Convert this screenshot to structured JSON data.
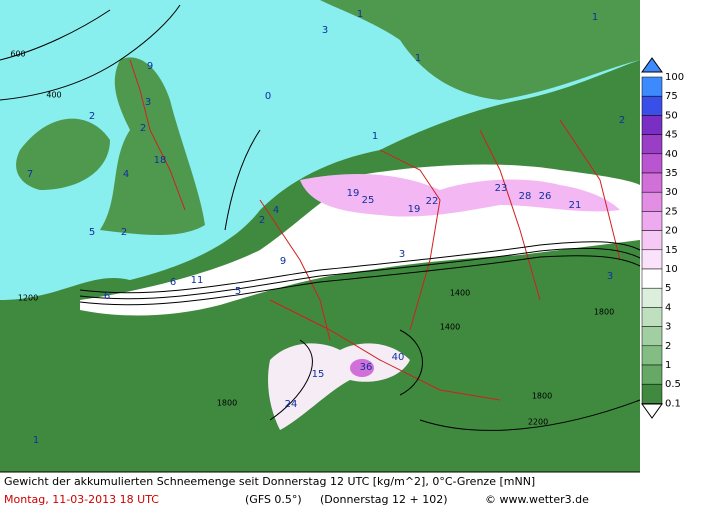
{
  "legend": {
    "labels": [
      "100",
      "75",
      "50",
      "45",
      "40",
      "35",
      "30",
      "25",
      "20",
      "15",
      "10",
      "5",
      "4",
      "3",
      "2",
      "1",
      "0.5",
      "0.1"
    ],
    "bin_colors": [
      "#3d8aff",
      "#3a4fe8",
      "#7a2fc4",
      "#9a3ec8",
      "#b955d0",
      "#d070d8",
      "#e28ee4",
      "#eeaaee",
      "#f6c8f6",
      "#fbe2fb",
      "#ffffff",
      "#dcefdc",
      "#bfe0bf",
      "#a2cfa2",
      "#84bd84",
      "#66a866",
      "#3f8a3f"
    ]
  },
  "map_labels": [
    "600",
    "400",
    "1",
    "3",
    "2",
    "9",
    "3",
    "2",
    "18",
    "4",
    "7",
    "5",
    "2",
    "4",
    "2",
    "9",
    "6",
    "6",
    "11",
    "5",
    "3",
    "19",
    "25",
    "19",
    "22",
    "23",
    "28",
    "26",
    "21",
    "3",
    "2",
    "1",
    "15",
    "36",
    "40",
    "24",
    "1",
    "1400",
    "1800",
    "1800",
    "1200",
    "1400",
    "1800",
    "2200",
    "0",
    "1",
    "1"
  ],
  "footer": {
    "description": "Gewicht der akkumulierten Schneemenge seit Donnerstag 12 UTC [kg/m^2], 0°C-Grenze [mNN]",
    "date": "Montag, 11-03-2013  18 UTC",
    "model": "(GFS 0.5°)",
    "run": "(Donnerstag 12 + 102)",
    "credit": "© www.wetter3.de"
  }
}
